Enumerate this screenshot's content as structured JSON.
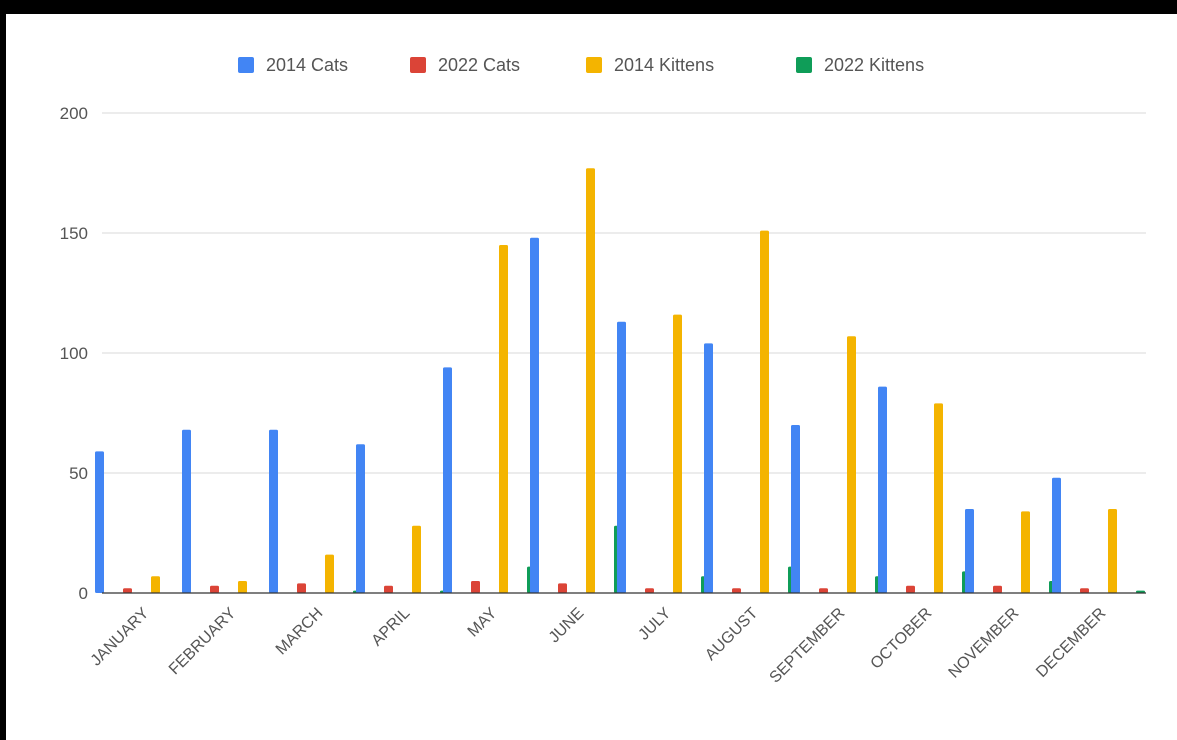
{
  "chart_data": {
    "type": "bar",
    "categories": [
      "JANUARY",
      "FEBRUARY",
      "MARCH",
      "APRIL",
      "MAY",
      "JUNE",
      "JULY",
      "AUGUST",
      "SEPTEMBER",
      "OCTOBER",
      "NOVEMBER",
      "DECEMBER"
    ],
    "series": [
      {
        "name": "2014 Cats",
        "color": "#4285F4",
        "values": [
          59,
          68,
          68,
          62,
          94,
          148,
          113,
          104,
          70,
          86,
          35,
          48
        ]
      },
      {
        "name": "2022 Cats",
        "color": "#DB4437",
        "values": [
          2,
          3,
          4,
          3,
          5,
          4,
          2,
          2,
          2,
          3,
          3,
          2
        ]
      },
      {
        "name": "2014 Kittens",
        "color": "#F4B400",
        "values": [
          7,
          5,
          16,
          28,
          145,
          177,
          116,
          151,
          107,
          79,
          34,
          35
        ]
      },
      {
        "name": "2022 Kittens",
        "color": "#0F9D58",
        "values": [
          0,
          0,
          1,
          1,
          11,
          28,
          7,
          11,
          7,
          9,
          5,
          1
        ]
      }
    ],
    "yticks": [
      "0",
      "50",
      "100",
      "150",
      "200"
    ],
    "ylim": [
      0,
      200
    ],
    "title": "",
    "xlabel": "",
    "ylabel": "",
    "legend": "top",
    "grid": true
  }
}
